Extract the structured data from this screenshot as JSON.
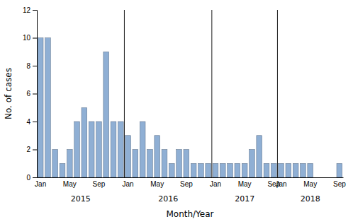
{
  "chart_data": {
    "type": "bar",
    "categories": [
      "Jan",
      null,
      null,
      null,
      "May",
      null,
      null,
      null,
      "Sep",
      null,
      null,
      null,
      "Jan",
      null,
      null,
      null,
      "May",
      null,
      null,
      null,
      "Sep",
      null,
      null,
      null,
      "Jan",
      null,
      null,
      null,
      "May",
      null,
      null,
      null,
      "Sep",
      "Jan",
      null,
      null,
      null,
      "May",
      null,
      null,
      null,
      "Sep"
    ],
    "values": [
      10,
      10,
      2,
      1,
      2,
      4,
      5,
      4,
      4,
      9,
      4,
      4,
      3,
      2,
      4,
      2,
      3,
      2,
      1,
      2,
      2,
      1,
      1,
      1,
      1,
      1,
      1,
      1,
      1,
      2,
      3,
      1,
      1,
      1,
      1,
      1,
      1,
      1,
      0,
      0,
      0,
      1
    ],
    "color": "#8fafd4",
    "annotations": [
      "2015",
      "2016",
      "2017",
      "2018"
    ],
    "xlabel": "Month/Year",
    "ylabel": "No. of cases",
    "ylim": [
      0,
      12
    ],
    "yticks": [
      0,
      2,
      4,
      6,
      8,
      10,
      12
    ],
    "grid": false
  }
}
